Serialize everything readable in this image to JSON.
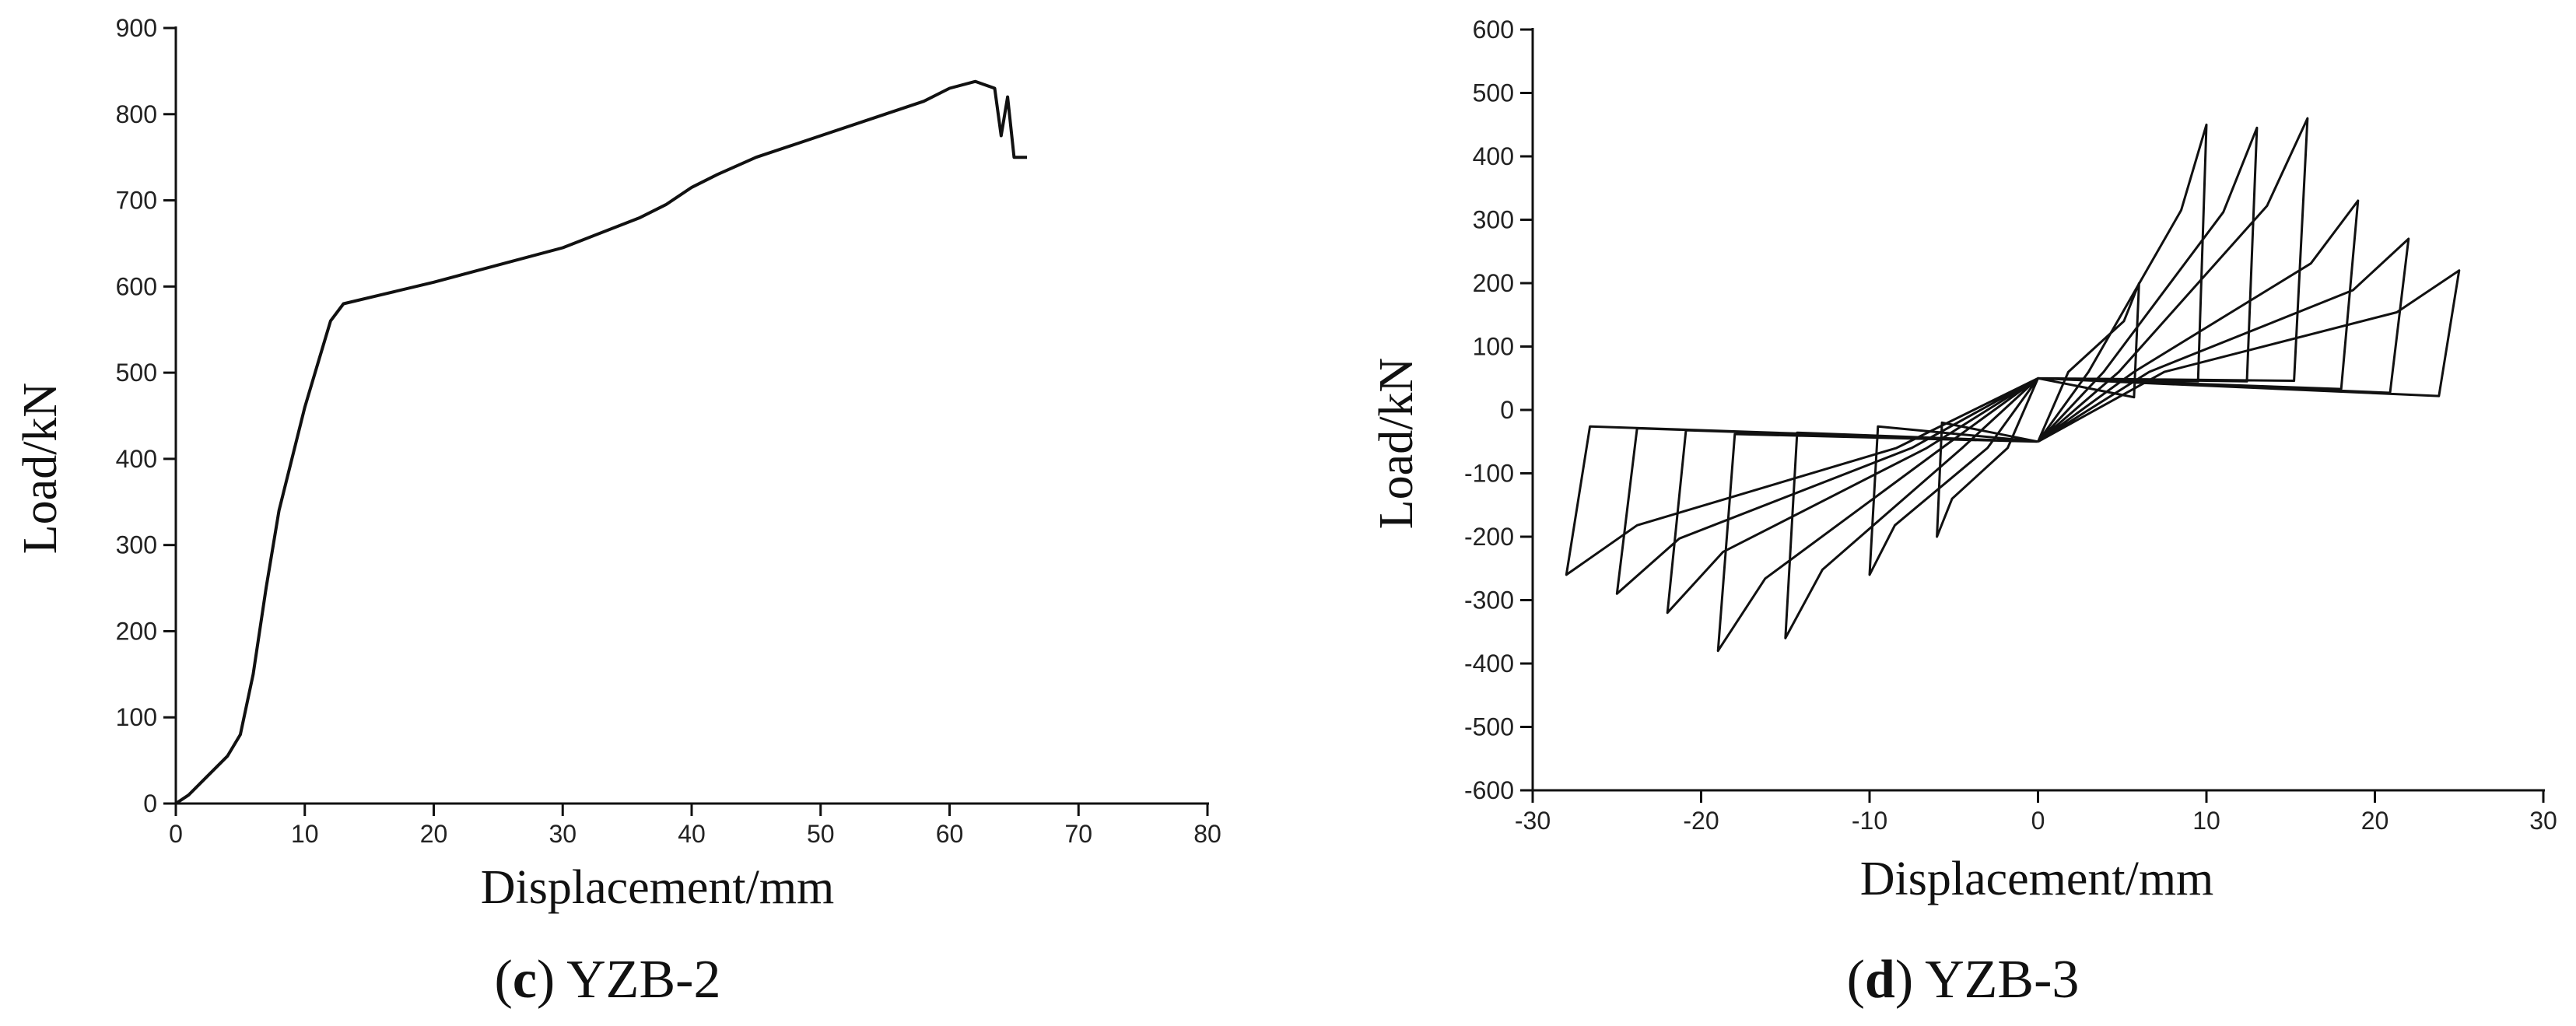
{
  "chart_data": [
    {
      "type": "line",
      "x_label": "Displacement/mm",
      "y_label": "Load/kN",
      "caption_parts": [
        "(",
        "c",
        ") YZB-2"
      ],
      "xlim": [
        0,
        80
      ],
      "xticks": [
        0,
        10,
        20,
        30,
        40,
        50,
        60,
        70,
        80
      ],
      "ylim": [
        0,
        900
      ],
      "yticks": [
        0,
        100,
        200,
        300,
        400,
        500,
        600,
        700,
        800,
        900
      ],
      "color": "#111111",
      "x": [
        0,
        1,
        2,
        3,
        4,
        5,
        6,
        7,
        8,
        9,
        10,
        11,
        12,
        13,
        20,
        30,
        36,
        38,
        40,
        42,
        45,
        48,
        50,
        55,
        58,
        60,
        62,
        63.5,
        64,
        64.5,
        65,
        66
      ],
      "values": [
        0,
        10,
        25,
        40,
        55,
        80,
        150,
        250,
        340,
        400,
        460,
        510,
        560,
        580,
        605,
        645,
        680,
        695,
        715,
        730,
        750,
        765,
        775,
        800,
        815,
        830,
        838,
        830,
        775,
        820,
        750,
        750
      ]
    },
    {
      "type": "line",
      "x_label": "Displacement/mm",
      "y_label": "Load/kN",
      "caption_parts": [
        "(",
        "d",
        ") YZB-3"
      ],
      "xlim": [
        -30,
        30
      ],
      "xticks": [
        -30,
        -20,
        -10,
        0,
        10,
        20,
        30
      ],
      "ylim": [
        -600,
        600
      ],
      "yticks": [
        -600,
        -500,
        -400,
        -300,
        -200,
        -100,
        0,
        100,
        200,
        300,
        400,
        500,
        600
      ],
      "color": "#111111",
      "x": [
        0,
        1.8,
        5.1,
        6,
        5.7,
        0,
        -1.8,
        -5.1,
        -6,
        -5.7,
        0,
        null,
        0,
        3,
        8.5,
        10,
        9.5,
        0,
        -3,
        -8.5,
        -10,
        -9.5,
        0,
        null,
        0,
        3.9,
        11,
        13,
        12.4,
        0,
        -4.5,
        -12.8,
        -15,
        -14.3,
        0,
        null,
        0,
        4.8,
        13.6,
        16,
        15.2,
        0,
        -5.7,
        -16.2,
        -19,
        -18,
        0,
        null,
        0,
        5.7,
        16.2,
        19,
        18,
        0,
        -6.6,
        -18.7,
        -22,
        -20.9,
        0,
        null,
        0,
        6.6,
        18.7,
        22,
        20.9,
        0,
        -7.5,
        -21.3,
        -25,
        -23.8,
        0,
        null,
        0,
        7.5,
        21.3,
        25,
        23.8,
        0,
        -8.4,
        -23.8,
        -28,
        -26.6,
        0
      ],
      "values": [
        -50,
        60,
        140,
        200,
        20,
        50,
        -60,
        -140,
        -200,
        -20,
        -50,
        null,
        -50,
        60,
        315,
        450,
        45,
        50,
        -60,
        -182,
        -260,
        -26,
        -50,
        null,
        -50,
        60,
        312,
        445,
        45,
        50,
        -60,
        -252,
        -360,
        -36,
        -50,
        null,
        -50,
        60,
        322,
        460,
        46,
        50,
        -60,
        -266,
        -380,
        -38,
        -50,
        null,
        -50,
        60,
        231,
        330,
        33,
        50,
        -60,
        -224,
        -320,
        -32,
        -50,
        null,
        -50,
        60,
        189,
        270,
        27,
        50,
        -60,
        -203,
        -290,
        -29,
        -50,
        null,
        -50,
        60,
        154,
        220,
        22,
        50,
        -60,
        -182,
        -260,
        -26,
        -50
      ]
    }
  ]
}
